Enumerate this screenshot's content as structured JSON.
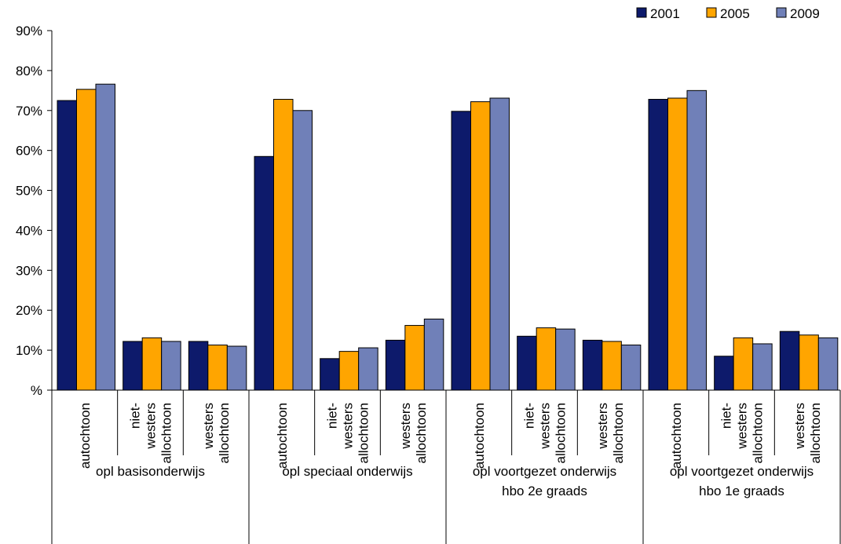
{
  "chart_data": {
    "type": "bar",
    "title": "",
    "xlabel": "",
    "ylabel": "",
    "ylim": [
      0,
      90
    ],
    "y_ticks": [
      "%",
      "10%",
      "20%",
      "30%",
      "40%",
      "50%",
      "60%",
      "70%",
      "80%",
      "90%"
    ],
    "grid": false,
    "legend_position": "top-right",
    "groups": [
      {
        "label": [
          "opl basisonderwijs"
        ],
        "categories": [
          [
            "autochtoon"
          ],
          [
            "niet-",
            "westers",
            "allochtoon"
          ],
          [
            "westers",
            "allochtoon"
          ]
        ]
      },
      {
        "label": [
          "opl speciaal onderwijs"
        ],
        "categories": [
          [
            "autochtoon"
          ],
          [
            "niet-",
            "westers",
            "allochtoon"
          ],
          [
            "westers",
            "allochtoon"
          ]
        ]
      },
      {
        "label": [
          "opl voortgezet onderwijs",
          "hbo 2e graads"
        ],
        "categories": [
          [
            "autochtoon"
          ],
          [
            "niet-",
            "westers",
            "allochtoon"
          ],
          [
            "westers",
            "allochtoon"
          ]
        ]
      },
      {
        "label": [
          "opl voortgezet onderwijs",
          "hbo 1e graads"
        ],
        "categories": [
          [
            "autochtoon"
          ],
          [
            "niet-",
            "westers",
            "allochtoon"
          ],
          [
            "westers",
            "allochtoon"
          ]
        ]
      }
    ],
    "series": [
      {
        "name": "2001",
        "color": "#0d1a6b",
        "values": [
          72.5,
          12.2,
          12.2,
          58.5,
          7.9,
          12.5,
          69.8,
          13.5,
          12.5,
          72.8,
          8.5,
          14.7
        ]
      },
      {
        "name": "2005",
        "color": "#ffa500",
        "values": [
          75.3,
          13.1,
          11.3,
          72.8,
          9.7,
          16.2,
          72.2,
          15.6,
          12.2,
          73.1,
          13.1,
          13.8
        ]
      },
      {
        "name": "2009",
        "color": "#7080b8",
        "values": [
          76.6,
          12.2,
          11.0,
          70.0,
          10.6,
          17.8,
          73.1,
          15.3,
          11.3,
          75.0,
          11.6,
          13.1
        ]
      }
    ]
  }
}
